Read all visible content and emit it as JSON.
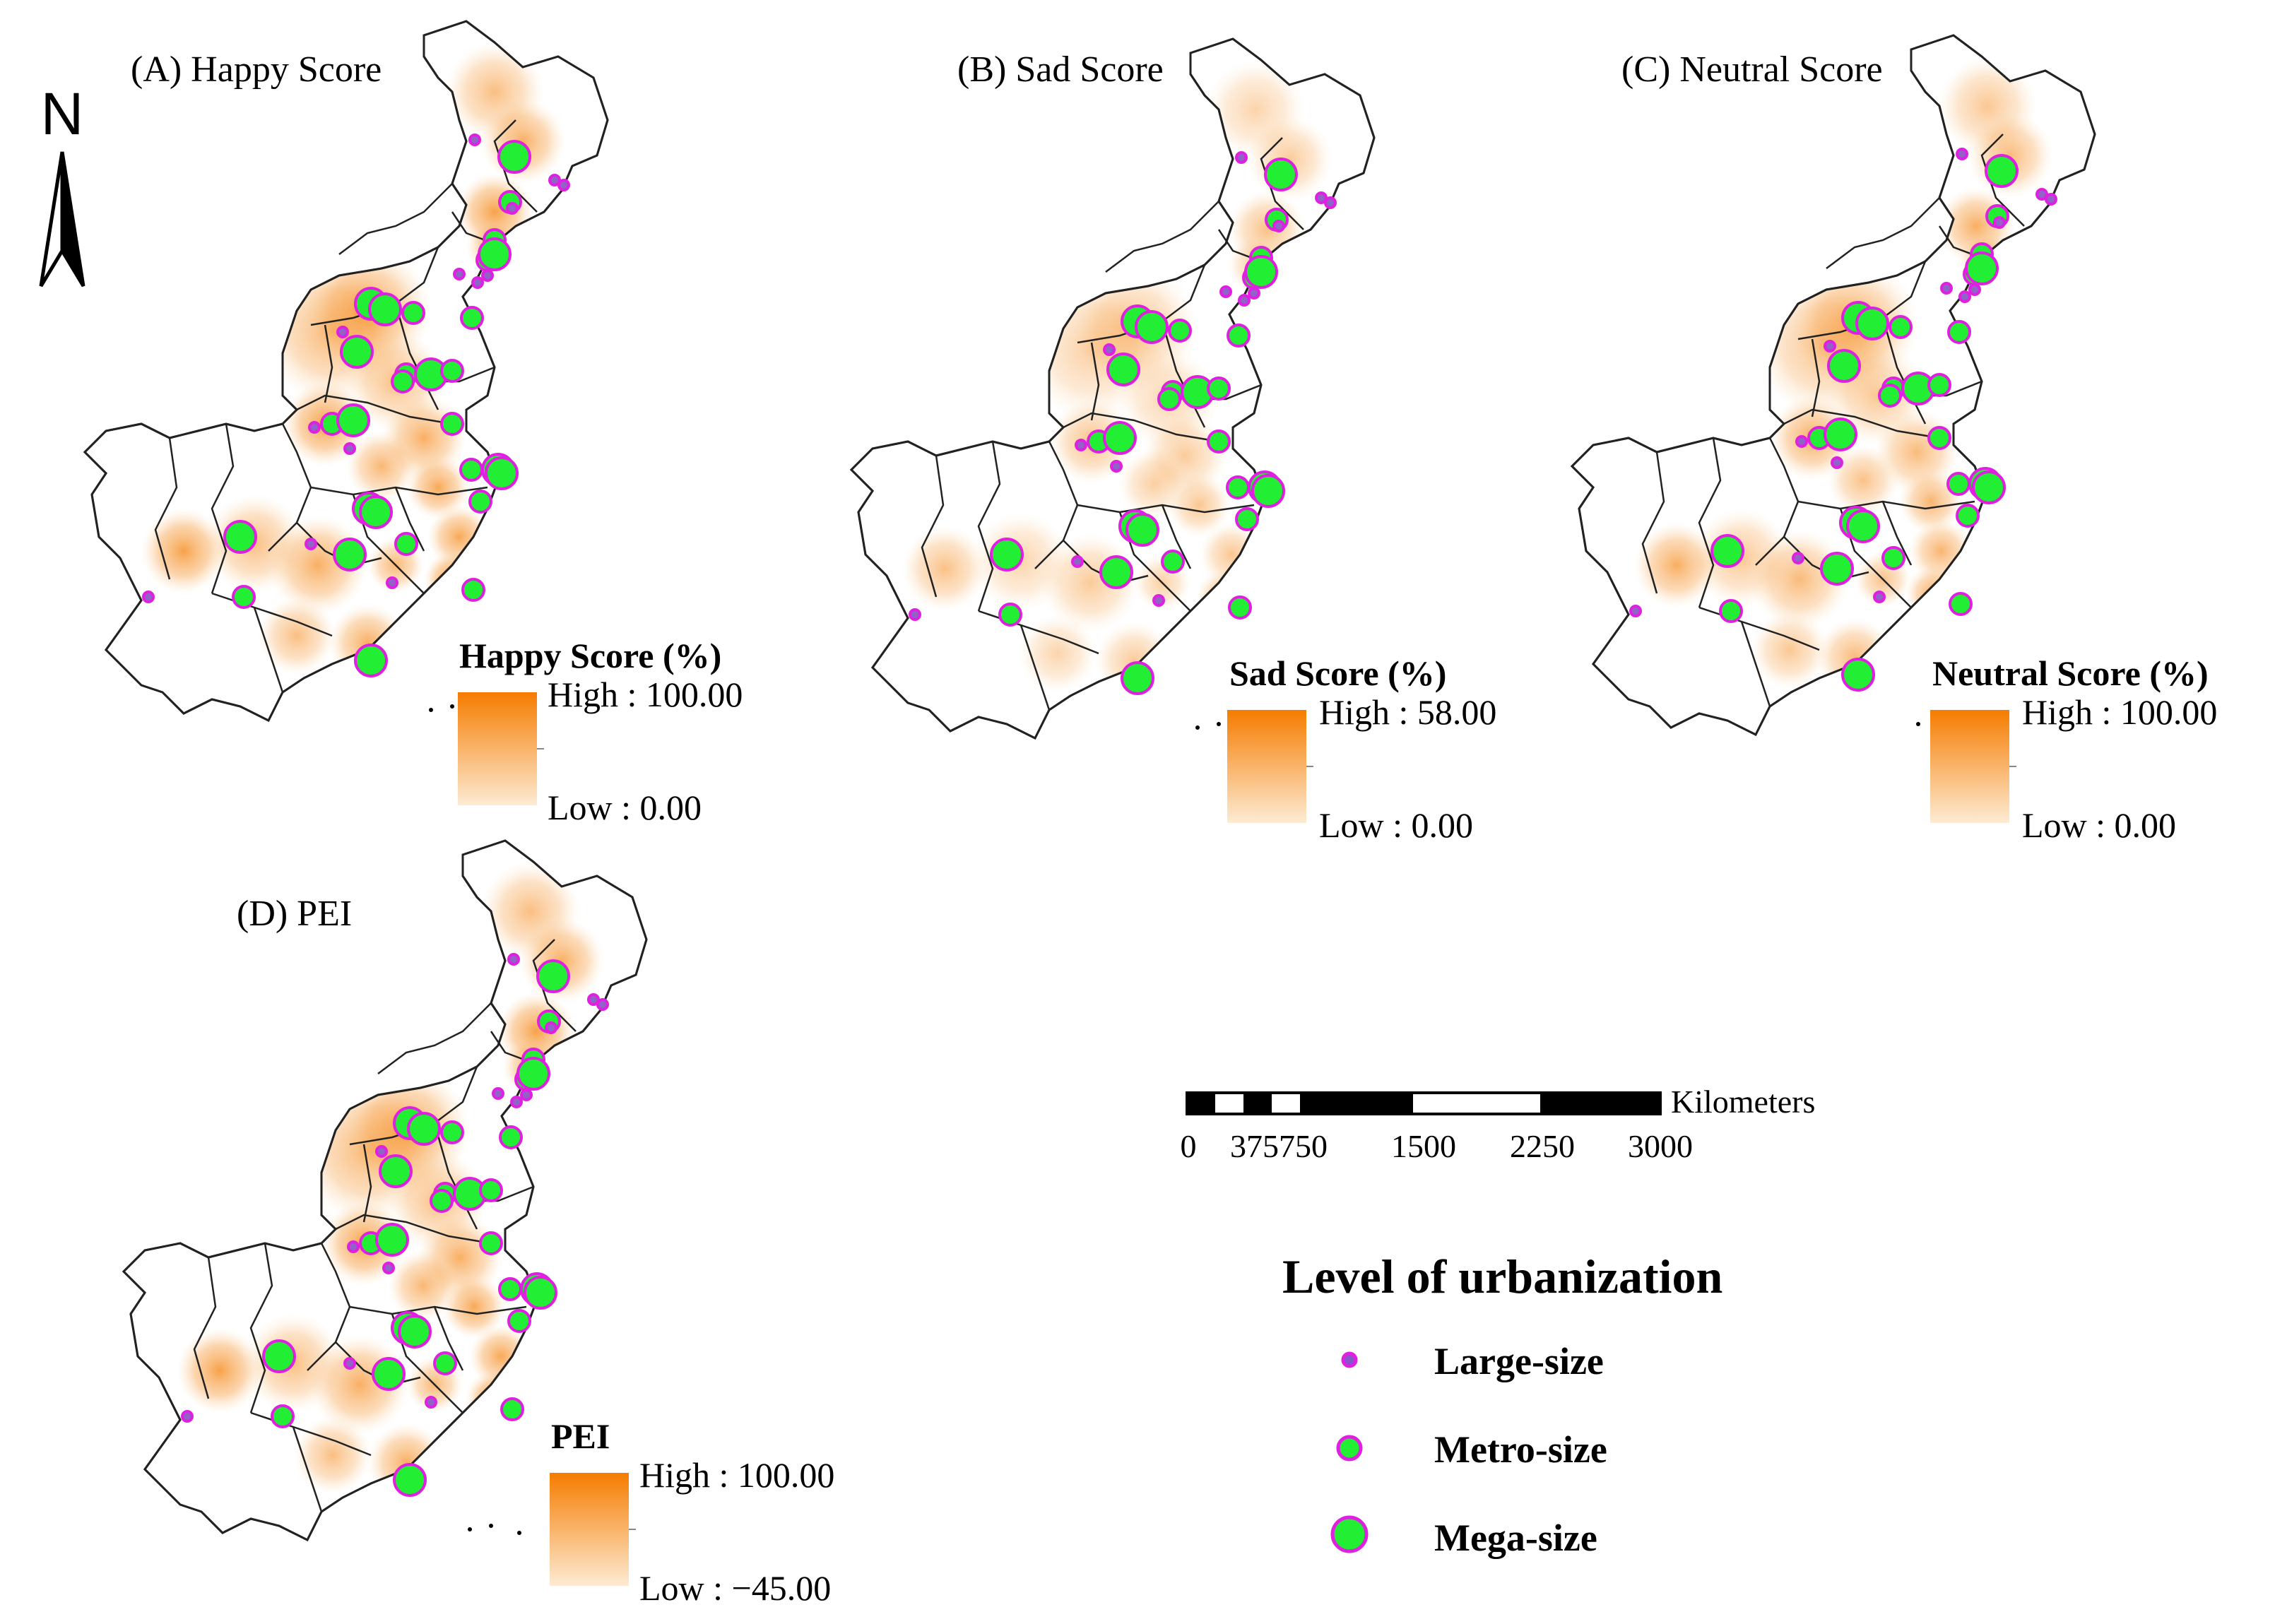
{
  "figure": {
    "north_label": "N",
    "panels": [
      {
        "id": "A",
        "title": "(A) Happy Score",
        "legend_title": "Happy Score (%)",
        "legend_high": "High : 100.00",
        "legend_low": "Low : 0.00",
        "intensity": 0.75
      },
      {
        "id": "B",
        "title": "(B) Sad Score",
        "legend_title": "Sad Score (%)",
        "legend_high": "High : 58.00",
        "legend_low": "Low : 0.00",
        "intensity": 0.5
      },
      {
        "id": "C",
        "title": "(C) Neutral Score",
        "legend_title": "Neutral Score (%)",
        "legend_high": "High : 100.00",
        "legend_low": "Low : 0.00",
        "intensity": 0.65
      },
      {
        "id": "D",
        "title": "(D) PEI",
        "legend_title": "PEI",
        "legend_high": "High : 100.00",
        "legend_low": "Low : −45.00",
        "intensity": 0.75
      }
    ],
    "scale_bar": {
      "unit": "Kilometers",
      "ticks": [
        "0",
        "375750",
        "1500",
        "2250",
        "3000"
      ]
    },
    "urbanization_legend": {
      "title": "Level of urbanization",
      "items": [
        {
          "label": "Large-size",
          "size_class": "large"
        },
        {
          "label": "Metro-size",
          "size_class": "metro"
        },
        {
          "label": "Mega-size",
          "size_class": "mega"
        }
      ]
    },
    "colors": {
      "ramp_high": "#f57c00",
      "ramp_low": "#fde9cf",
      "city_fill": "#22ee33",
      "city_stroke": "#e020e0",
      "boundary": "#222222"
    }
  }
}
